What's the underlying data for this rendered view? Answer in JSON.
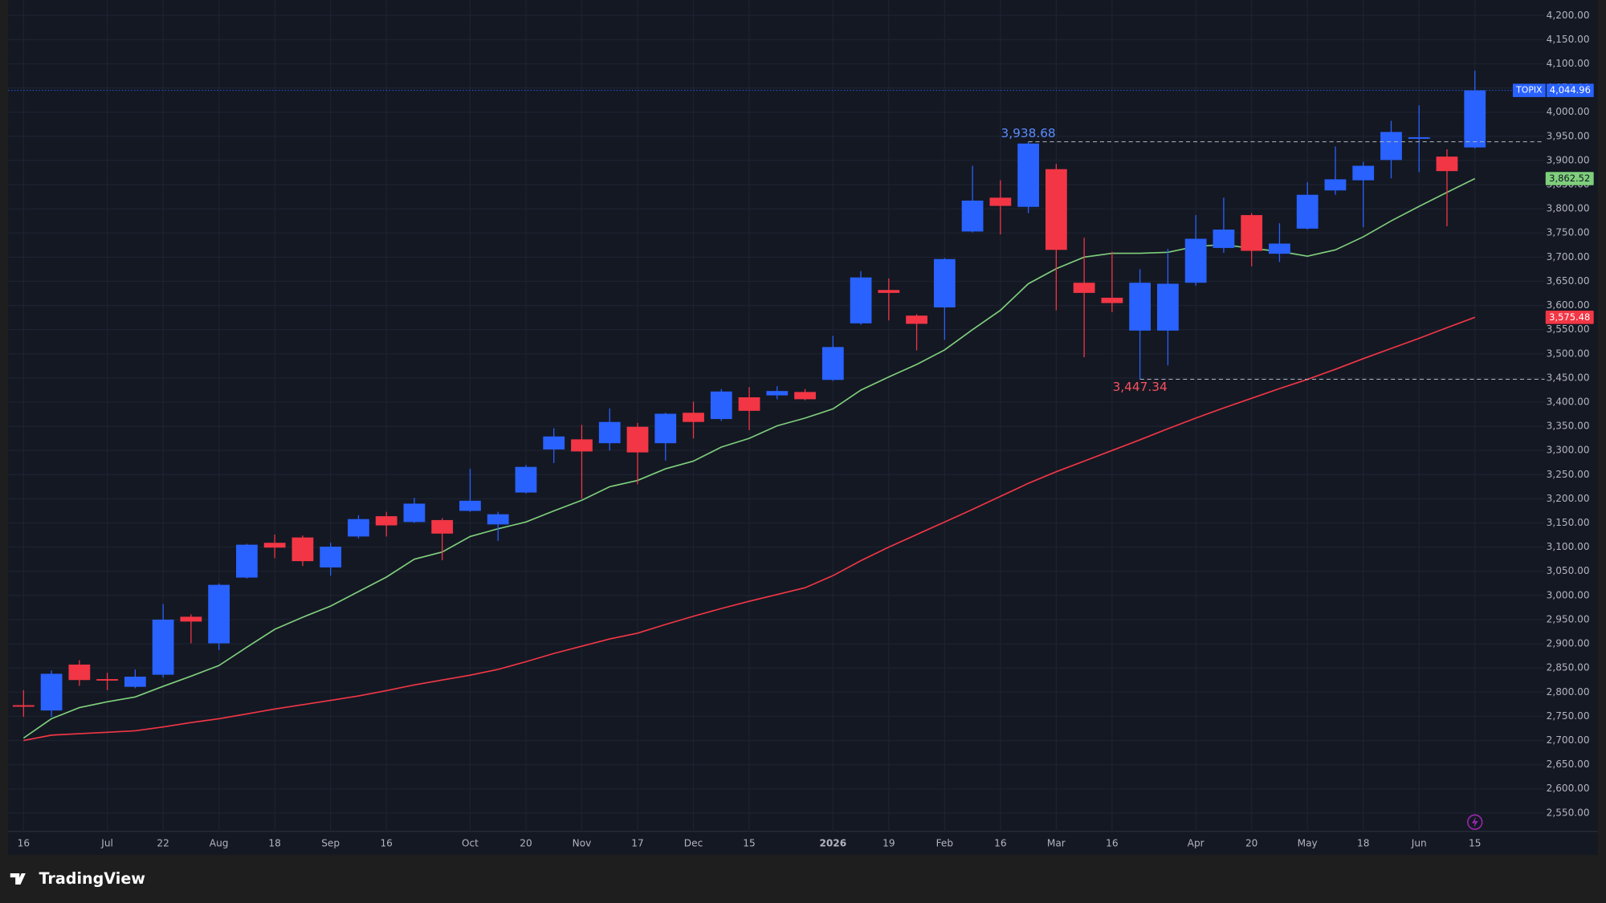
{
  "chart_data": {
    "type": "candlestick",
    "symbol": "TOPIX",
    "branding": "TradingView",
    "x": [
      "16",
      null,
      null,
      "Jul",
      null,
      "22",
      null,
      "Aug",
      null,
      "18",
      null,
      "Sep",
      null,
      "16",
      null,
      null,
      "Oct",
      null,
      "20",
      null,
      "Nov",
      null,
      "17",
      null,
      "Dec",
      null,
      "15",
      null,
      null,
      "2026",
      null,
      "19",
      null,
      "Feb",
      null,
      "16",
      null,
      "Mar",
      null,
      "16",
      null,
      null,
      "Apr",
      null,
      "20",
      null,
      "May",
      null,
      "18",
      null,
      "Jun",
      null,
      "15"
    ],
    "open": [
      2773,
      2762,
      2857,
      2827,
      2811,
      2836,
      2956,
      2901,
      3037,
      3109,
      3120,
      3058,
      3122,
      3164,
      3152,
      3156,
      3175,
      3147,
      3213,
      3302,
      3323,
      3315,
      3349,
      3315,
      3378,
      3365,
      3410,
      3414,
      3421,
      3446,
      3563,
      3632,
      3579,
      3596,
      3753,
      3823,
      3804,
      3882,
      3647,
      3616,
      3548,
      3548,
      3647,
      3719,
      3787,
      3707,
      3759,
      3838,
      3859,
      3901,
      3946,
      3908,
      3927
    ],
    "high": [
      2804,
      2845,
      2866,
      2840,
      2847,
      2982,
      2961,
      3025,
      3107,
      3126,
      3124,
      3109,
      3166,
      3173,
      3202,
      3160,
      3262,
      3173,
      3270,
      3346,
      3353,
      3387,
      3357,
      3378,
      3401,
      3427,
      3431,
      3433,
      3427,
      3537,
      3671,
      3656,
      3582,
      3698,
      3889,
      3859,
      3938.68,
      3893,
      3740,
      3711,
      3675,
      3717,
      3787,
      3823,
      3791,
      3770,
      3855,
      3929,
      3897,
      3982,
      4014,
      3923,
      4086
    ],
    "low": [
      2749,
      2749,
      2813,
      2804,
      2808,
      2830,
      2901,
      2887,
      3035,
      3077,
      3061,
      3041,
      3118,
      3122,
      3150,
      3073,
      3173,
      3113,
      3211,
      3274,
      3200,
      3300,
      3230,
      3279,
      3325,
      3361,
      3342,
      3406,
      3404,
      3444,
      3560,
      3569,
      3507,
      3529,
      3751,
      3747,
      3791,
      3590,
      3493,
      3586,
      3447.34,
      3476,
      3641,
      3709,
      3681,
      3690,
      3757,
      3829,
      3762,
      3863,
      3876,
      3764,
      3925
    ],
    "close": [
      2770,
      2838,
      2825,
      2824,
      2832,
      2950,
      2946,
      3022,
      3105,
      3099,
      3071,
      3101,
      3158,
      3145,
      3190,
      3128,
      3196,
      3168,
      3266,
      3329,
      3298,
      3359,
      3296,
      3376,
      3359,
      3422,
      3382,
      3423,
      3406,
      3514,
      3658,
      3626,
      3562,
      3696,
      3817,
      3806,
      3935,
      3715,
      3626,
      3605,
      3647,
      3645,
      3738,
      3757,
      3713,
      3728,
      3829,
      3861,
      3889,
      3959,
      3948,
      3878,
      4044.96
    ],
    "last_close_label": "4,044.96",
    "up_color": "#2962ff",
    "down_color": "#f23645",
    "moving_averages": [
      {
        "color": "#7fcf7c",
        "last_label": "3,862.52",
        "values": [
          2705,
          2745,
          2768,
          2780,
          2790,
          2812,
          2833,
          2855,
          2893,
          2930,
          2955,
          2978,
          3008,
          3038,
          3075,
          3090,
          3122,
          3138,
          3152,
          3175,
          3197,
          3225,
          3238,
          3262,
          3278,
          3307,
          3325,
          3351,
          3367,
          3386,
          3425,
          3452,
          3478,
          3508,
          3550,
          3590,
          3645,
          3676,
          3700,
          3708,
          3708,
          3710,
          3722,
          3726,
          3718,
          3712,
          3702,
          3715,
          3742,
          3775,
          3805,
          3834,
          3862.52
        ]
      },
      {
        "color": "#f23645",
        "last_label": "3,575.48",
        "values": [
          2700,
          2711,
          2714,
          2717,
          2720,
          2728,
          2737,
          2745,
          2755,
          2765,
          2774,
          2783,
          2792,
          2803,
          2815,
          2825,
          2835,
          2847,
          2863,
          2880,
          2895,
          2910,
          2922,
          2940,
          2957,
          2973,
          2988,
          3002,
          3016,
          3041,
          3072,
          3100,
          3126,
          3152,
          3178,
          3205,
          3232,
          3256,
          3278,
          3300,
          3322,
          3345,
          3367,
          3388,
          3408,
          3428,
          3447,
          3468,
          3490,
          3511,
          3532,
          3554,
          3575.48
        ]
      }
    ],
    "high_marker": {
      "index": 36,
      "label": "3,938.68"
    },
    "low_marker": {
      "index": 40,
      "label": "3,447.34"
    },
    "ylim": [
      2512,
      4232
    ],
    "yticks": [
      {
        "value": 2550,
        "label": "2,550.00"
      },
      {
        "value": 2600,
        "label": "2,600.00"
      },
      {
        "value": 2650,
        "label": "2,650.00"
      },
      {
        "value": 2700,
        "label": "2,700.00"
      },
      {
        "value": 2750,
        "label": "2,750.00"
      },
      {
        "value": 2800,
        "label": "2,800.00"
      },
      {
        "value": 2850,
        "label": "2,850.00"
      },
      {
        "value": 2900,
        "label": "2,900.00"
      },
      {
        "value": 2950,
        "label": "2,950.00"
      },
      {
        "value": 3000,
        "label": "3,000.00"
      },
      {
        "value": 3050,
        "label": "3,050.00"
      },
      {
        "value": 3100,
        "label": "3,100.00"
      },
      {
        "value": 3150,
        "label": "3,150.00"
      },
      {
        "value": 3200,
        "label": "3,200.00"
      },
      {
        "value": 3250,
        "label": "3,250.00"
      },
      {
        "value": 3300,
        "label": "3,300.00"
      },
      {
        "value": 3350,
        "label": "3,350.00"
      },
      {
        "value": 3400,
        "label": "3,400.00"
      },
      {
        "value": 3450,
        "label": "3,450.00"
      },
      {
        "value": 3500,
        "label": "3,500.00"
      },
      {
        "value": 3550,
        "label": "3,550.00"
      },
      {
        "value": 3600,
        "label": "3,600.00"
      },
      {
        "value": 3650,
        "label": "3,650.00"
      },
      {
        "value": 3700,
        "label": "3,700.00"
      },
      {
        "value": 3750,
        "label": "3,750.00"
      },
      {
        "value": 3800,
        "label": "3,800.00"
      },
      {
        "value": 3850,
        "label": "3,850.00"
      },
      {
        "value": 3900,
        "label": "3,900.00"
      },
      {
        "value": 3950,
        "label": "3,950.00"
      },
      {
        "value": 4000,
        "label": "4,000.00"
      },
      {
        "value": 4050,
        "label": "4,050.00"
      },
      {
        "value": 4100,
        "label": "4,100.00"
      },
      {
        "value": 4150,
        "label": "4,150.00"
      },
      {
        "value": 4200,
        "label": "4,200.00"
      }
    ],
    "grid": true
  }
}
